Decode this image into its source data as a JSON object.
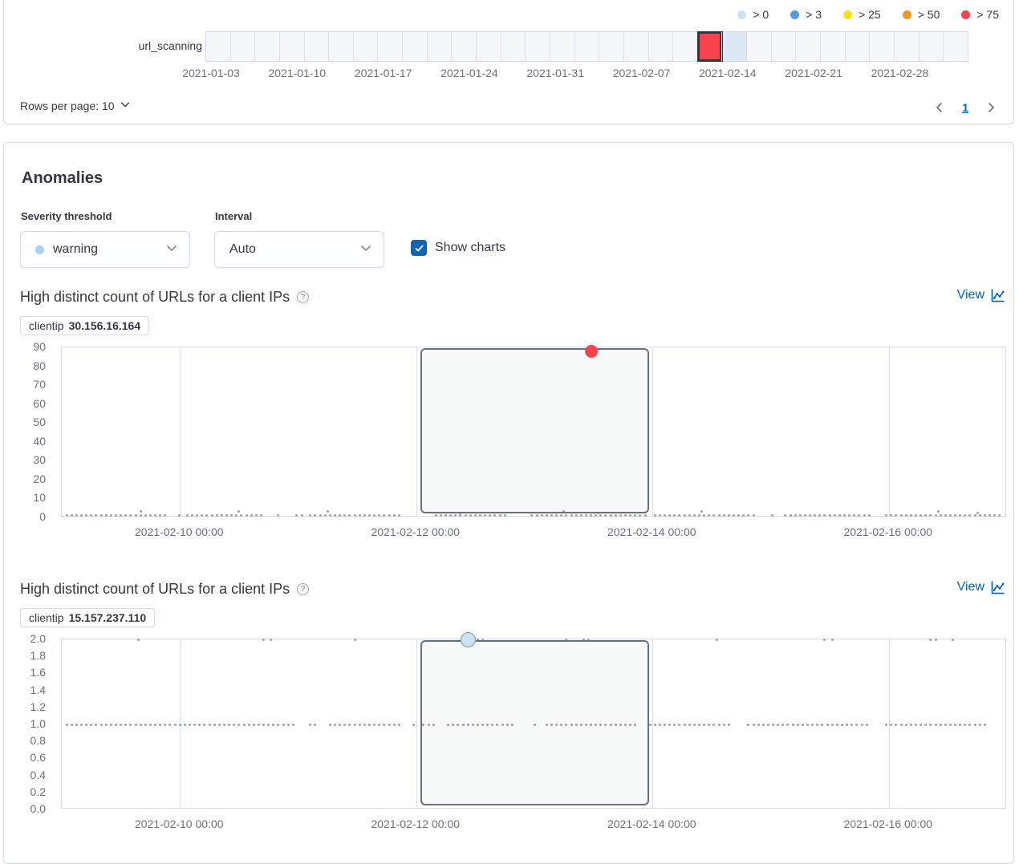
{
  "swimlane_card": {
    "legend": [
      {
        "label": "> 0",
        "color": "#C9E3F6"
      },
      {
        "label": "> 3",
        "color": "#509BE5"
      },
      {
        "label": "> 25",
        "color": "#FFE20A"
      },
      {
        "label": "> 50",
        "color": "#F59620"
      },
      {
        "label": "> 75",
        "color": "#F8424D"
      }
    ],
    "row_label": "url_scanning",
    "cells": [
      "",
      "",
      "",
      "",
      "",
      "",
      "",
      "",
      "",
      "",
      "",
      "",
      "",
      "",
      "",
      "",
      "",
      "",
      "",
      "",
      "critical",
      "low",
      "",
      "",
      "",
      "",
      "",
      "",
      "",
      "",
      ""
    ],
    "date_labels": [
      "2021-01-03",
      "2021-01-10",
      "2021-01-17",
      "2021-01-24",
      "2021-01-31",
      "2021-02-07",
      "2021-02-14",
      "2021-02-21",
      "2021-02-28"
    ],
    "rows_per_page_label": "Rows per page: 10",
    "page": "1"
  },
  "anomalies": {
    "heading": "Anomalies",
    "severity": {
      "label": "Severity threshold",
      "value": "warning",
      "dot_color": "#A9D1EF"
    },
    "interval": {
      "label": "Interval",
      "value": "Auto"
    },
    "show_charts_label": "Show charts"
  },
  "charts": [
    {
      "title": "High distinct count of URLs for a client IPs",
      "view_label": "View",
      "badge_field": "clientip",
      "badge_value": "30.156.16.164",
      "chart_data": {
        "type": "scatter",
        "x_domain": [
          "2021-02-09 00:00",
          "2021-02-17 00:00"
        ],
        "x_ticks": [
          "2021-02-10 00:00",
          "2021-02-12 00:00",
          "2021-02-14 00:00",
          "2021-02-16 00:00"
        ],
        "y_ticks": [
          "90",
          "80",
          "70",
          "60",
          "50",
          "40",
          "30",
          "20",
          "10",
          "0"
        ],
        "y_max": 90,
        "selection": [
          "2021-02-12 00:50",
          "2021-02-13 23:20"
        ],
        "dot_runs": [
          [
            "2021-02-09 01:00",
            "2021-02-09 21:30",
            1
          ],
          [
            "2021-02-09 23:50",
            "2021-02-10 00:10",
            1
          ],
          [
            "2021-02-10 01:30",
            "2021-02-10 17:00",
            1
          ],
          [
            "2021-02-10 20:00",
            "2021-02-10 20:30",
            1
          ],
          [
            "2021-02-10 23:45",
            "2021-02-11 01:00",
            1
          ],
          [
            "2021-02-11 02:30",
            "2021-02-11 20:30",
            1
          ],
          [
            "2021-02-12 04:00",
            "2021-02-12 18:00",
            1
          ],
          [
            "2021-02-12 23:30",
            "2021-02-13 22:30",
            1
          ],
          [
            "2021-02-14 00:30",
            "2021-02-14 20:30",
            1
          ],
          [
            "2021-02-15 00:15",
            "2021-02-15 00:45",
            1
          ],
          [
            "2021-02-15 03:00",
            "2021-02-15 20:15",
            1
          ],
          [
            "2021-02-15 23:30",
            "2021-02-16 23:00",
            1
          ]
        ],
        "points": [
          [
            "2021-02-09 16:00",
            3
          ],
          [
            "2021-02-10 12:00",
            3
          ],
          [
            "2021-02-11 06:00",
            3
          ],
          [
            "2021-02-12 09:00",
            2.5
          ],
          [
            "2021-02-13 06:00",
            3
          ],
          [
            "2021-02-13 13:00",
            2.5
          ],
          [
            "2021-02-14 10:00",
            3
          ],
          [
            "2021-02-16 10:00",
            3
          ],
          [
            "2021-02-16 18:00",
            2.5
          ]
        ],
        "anomaly": {
          "time": "2021-02-13 11:30",
          "value": 88,
          "severity": "critical (> 75)",
          "color": "#F8424D",
          "border": "#F8424D",
          "size": 16
        }
      }
    },
    {
      "title": "High distinct count of URLs for a client IPs",
      "view_label": "View",
      "badge_field": "clientip",
      "badge_value": "15.157.237.110",
      "chart_data": {
        "type": "scatter",
        "x_domain": [
          "2021-02-09 00:00",
          "2021-02-17 00:00"
        ],
        "x_ticks": [
          "2021-02-10 00:00",
          "2021-02-12 00:00",
          "2021-02-14 00:00",
          "2021-02-16 00:00"
        ],
        "y_ticks": [
          "2.0",
          "1.8",
          "1.6",
          "1.4",
          "1.2",
          "1.0",
          "0.8",
          "0.6",
          "0.4",
          "0.2",
          "0.0"
        ],
        "y_max": 2,
        "selection": [
          "2021-02-12 00:50",
          "2021-02-13 23:20"
        ],
        "dot_runs": [
          [
            "2021-02-09 01:00",
            "2021-02-10 23:00",
            1
          ],
          [
            "2021-02-11 02:30",
            "2021-02-11 03:30",
            1
          ],
          [
            "2021-02-11 06:30",
            "2021-02-11 21:00",
            1
          ],
          [
            "2021-02-11 23:30",
            "2021-02-11 23:45",
            1
          ],
          [
            "2021-02-12 01:30",
            "2021-02-12 04:00",
            1
          ],
          [
            "2021-02-12 06:30",
            "2021-02-12 20:00",
            1
          ],
          [
            "2021-02-13 00:00",
            "2021-02-13 00:15",
            1
          ],
          [
            "2021-02-13 02:30",
            "2021-02-13 20:30",
            1
          ],
          [
            "2021-02-13 23:30",
            "2021-02-14 16:00",
            1
          ],
          [
            "2021-02-14 19:30",
            "2021-02-15 19:30",
            1
          ],
          [
            "2021-02-15 23:30",
            "2021-02-16 19:30",
            1
          ]
        ],
        "points": [
          [
            "2021-02-09 15:30",
            2
          ],
          [
            "2021-02-10 17:00",
            2
          ],
          [
            "2021-02-10 18:30",
            2
          ],
          [
            "2021-02-11 11:30",
            2
          ],
          [
            "2021-02-12 12:30",
            2
          ],
          [
            "2021-02-12 13:30",
            2
          ],
          [
            "2021-02-13 06:30",
            2
          ],
          [
            "2021-02-13 10:00",
            2
          ],
          [
            "2021-02-13 11:00",
            2
          ],
          [
            "2021-02-14 13:00",
            2
          ],
          [
            "2021-02-15 11:00",
            2
          ],
          [
            "2021-02-15 12:30",
            2
          ],
          [
            "2021-02-16 08:30",
            2
          ],
          [
            "2021-02-16 09:30",
            2
          ],
          [
            "2021-02-16 13:00",
            2
          ]
        ],
        "anomaly": {
          "time": "2021-02-12 10:30",
          "value": 2,
          "severity": "warning (> 0)",
          "color": "#C9E2F4",
          "border": "#7F96A9",
          "size": 19
        }
      }
    }
  ]
}
